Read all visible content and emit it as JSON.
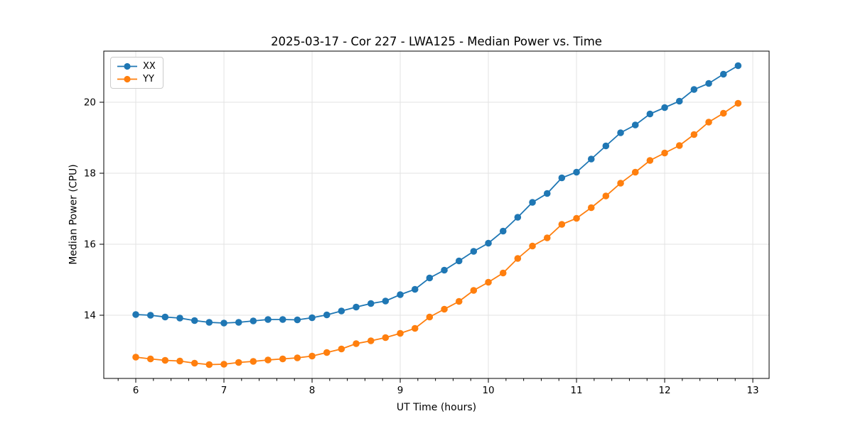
{
  "figure": {
    "background": "#ffffff",
    "spine_color": "#000000",
    "grid_color": "#e3e3e3",
    "tick_label_color": "#000000"
  },
  "chart_data": {
    "type": "line",
    "title": "2025-03-17 - Cor 227 - LWA125 - Median Power vs. Time",
    "xlabel": "UT Time (hours)",
    "ylabel": "Median Power (CPU)",
    "xlim": [
      5.637,
      13.185
    ],
    "ylim": [
      12.22,
      21.44
    ],
    "xticks": [
      6,
      7,
      8,
      9,
      10,
      11,
      12,
      13
    ],
    "yticks": [
      14,
      16,
      18,
      20
    ],
    "x_minor_step": 0.2,
    "grid": true,
    "legend_position": "upper left",
    "marker": "circle",
    "x": [
      6.0,
      6.167,
      6.333,
      6.5,
      6.667,
      6.833,
      7.0,
      7.167,
      7.333,
      7.5,
      7.667,
      7.833,
      8.0,
      8.167,
      8.333,
      8.5,
      8.667,
      8.833,
      9.0,
      9.167,
      9.333,
      9.5,
      9.667,
      9.833,
      10.0,
      10.167,
      10.333,
      10.5,
      10.667,
      10.833,
      11.0,
      11.167,
      11.333,
      11.5,
      11.667,
      11.833,
      12.0,
      12.167,
      12.333,
      12.5,
      12.667,
      12.833
    ],
    "series": [
      {
        "name": "XX",
        "color": "#1f77b4",
        "values": [
          14.02,
          14.0,
          13.95,
          13.92,
          13.85,
          13.8,
          13.78,
          13.8,
          13.84,
          13.88,
          13.88,
          13.87,
          13.93,
          14.01,
          14.12,
          14.23,
          14.33,
          14.4,
          14.58,
          14.73,
          15.05,
          15.27,
          15.53,
          15.8,
          16.03,
          16.37,
          16.76,
          17.18,
          17.43,
          17.87,
          18.03,
          18.4,
          18.77,
          19.14,
          19.36,
          19.67,
          19.85,
          20.03,
          20.36,
          20.53,
          20.79,
          21.03
        ]
      },
      {
        "name": "YY",
        "color": "#ff7f0e",
        "values": [
          12.82,
          12.77,
          12.73,
          12.71,
          12.65,
          12.61,
          12.62,
          12.67,
          12.7,
          12.74,
          12.77,
          12.8,
          12.85,
          12.95,
          13.05,
          13.2,
          13.28,
          13.37,
          13.49,
          13.63,
          13.95,
          14.17,
          14.39,
          14.7,
          14.93,
          15.19,
          15.6,
          15.95,
          16.18,
          16.56,
          16.73,
          17.03,
          17.36,
          17.72,
          18.03,
          18.36,
          18.57,
          18.78,
          19.09,
          19.44,
          19.69,
          19.97
        ]
      }
    ]
  }
}
